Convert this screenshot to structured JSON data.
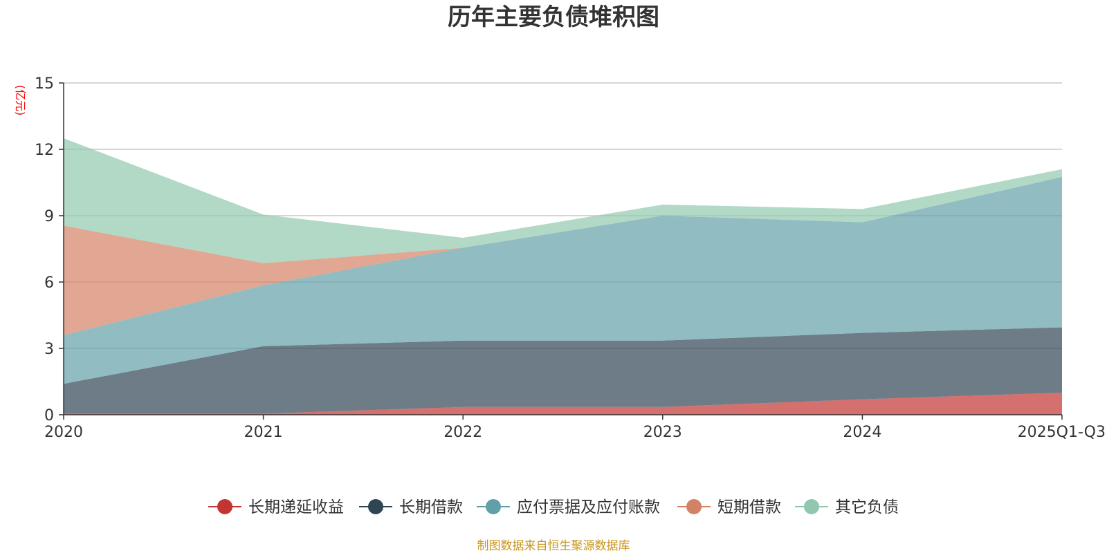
{
  "chart_data": {
    "type": "area",
    "stacked": true,
    "title": "历年主要负债堆积图",
    "unit_label": "(亿元)",
    "categories": [
      "2020",
      "2021",
      "2022",
      "2023",
      "2024",
      "2025Q1-Q3"
    ],
    "ylim": [
      0,
      15
    ],
    "yticks": [
      "0",
      "3",
      "6",
      "9",
      "12",
      "15"
    ],
    "grid": true,
    "legend_position": "bottom",
    "series": [
      {
        "name": "长期递延收益",
        "color": "#c23531",
        "values": [
          0.05,
          0.05,
          0.35,
          0.35,
          0.7,
          1.0
        ]
      },
      {
        "name": "长期借款",
        "color": "#2f4554",
        "values": [
          1.35,
          3.05,
          3.0,
          3.0,
          3.0,
          2.95
        ]
      },
      {
        "name": "应付票据及应付账款",
        "color": "#61a0a8",
        "values": [
          2.2,
          2.75,
          4.2,
          5.65,
          5.0,
          6.8
        ]
      },
      {
        "name": "短期借款",
        "color": "#d48265",
        "values": [
          4.95,
          1.0,
          0.0,
          0.0,
          0.0,
          0.0
        ]
      },
      {
        "name": "其它负债",
        "color": "#91c7ae",
        "values": [
          3.95,
          2.2,
          0.45,
          0.5,
          0.6,
          0.35
        ]
      }
    ],
    "source": "制图数据来自恒生聚源数据库"
  }
}
